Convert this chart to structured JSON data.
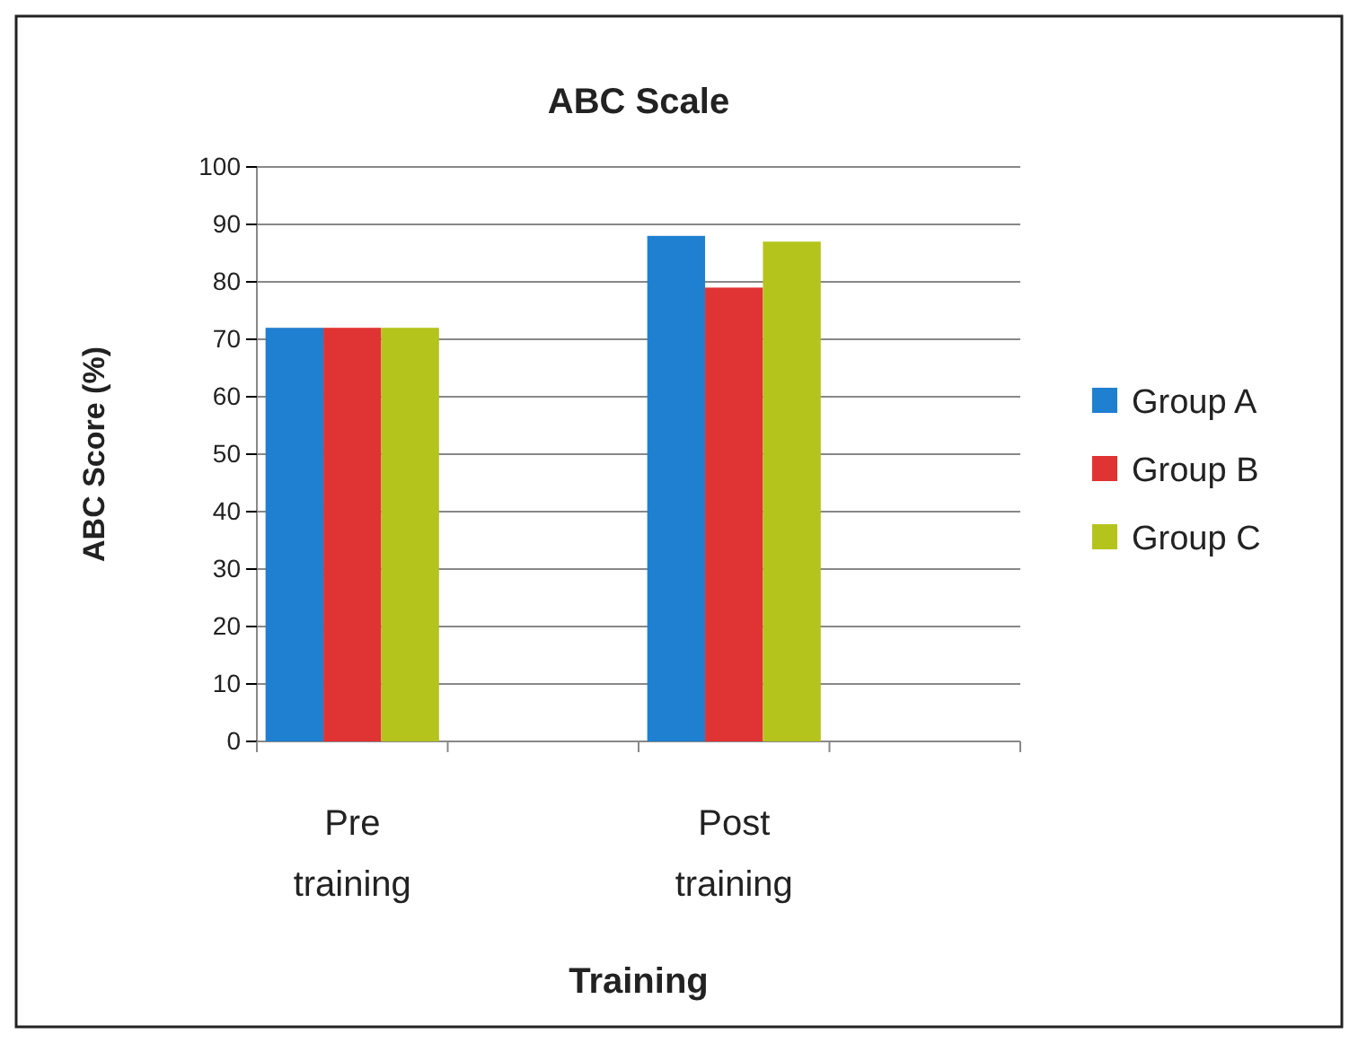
{
  "chart_data": {
    "type": "bar",
    "title": "ABC Scale",
    "xlabel": "Training",
    "ylabel": "ABC Score (%)",
    "categories": [
      "Pre training",
      null,
      "Post training",
      null
    ],
    "series": [
      {
        "name": "Group A",
        "color": "#1f7fd0",
        "values": [
          72,
          null,
          88,
          null
        ]
      },
      {
        "name": "Group B",
        "color": "#e03333",
        "values": [
          72,
          null,
          79,
          null
        ]
      },
      {
        "name": "Group C",
        "color": "#b5c41d",
        "values": [
          72,
          null,
          87,
          null
        ]
      }
    ],
    "ylim": [
      0,
      100
    ],
    "yticks": [
      0,
      10,
      20,
      30,
      40,
      50,
      60,
      70,
      80,
      90,
      100
    ],
    "grid": "y",
    "legend": "right"
  }
}
